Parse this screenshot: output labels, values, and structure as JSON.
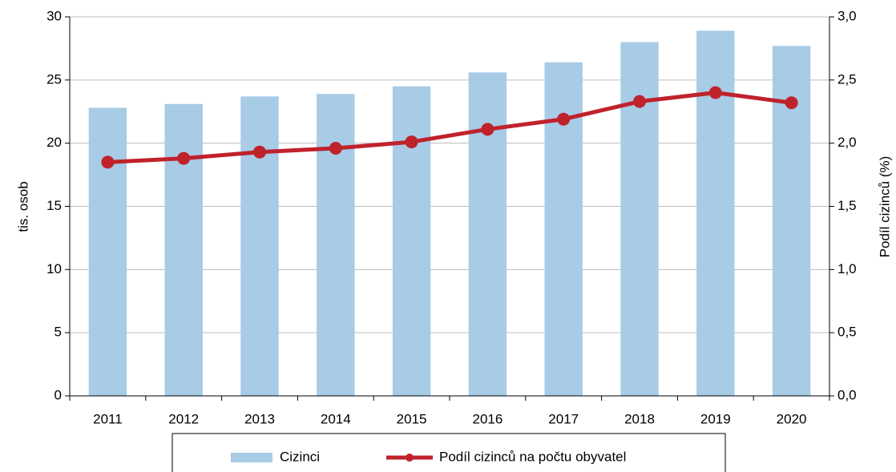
{
  "chart_data": {
    "type": "bar_line",
    "categories": [
      "2011",
      "2012",
      "2013",
      "2014",
      "2015",
      "2016",
      "2017",
      "2018",
      "2019",
      "2020"
    ],
    "series": [
      {
        "name": "Cizinci",
        "color": "#a8cbe6",
        "type": "bar",
        "values": [
          22.8,
          23.1,
          23.7,
          23.9,
          24.5,
          25.6,
          26.4,
          28.0,
          28.9,
          27.7
        ]
      },
      {
        "name": "Podíl cizinců na počtu obyvatel",
        "color": "#c0222c",
        "type": "line",
        "axis": "y2",
        "values": [
          1.85,
          1.88,
          1.93,
          1.96,
          2.01,
          2.11,
          2.19,
          2.33,
          2.4,
          2.32
        ]
      }
    ],
    "y_label": "tis. osob",
    "y2_label": "Podíl cizinců  (%)",
    "ylim": [
      0,
      30
    ],
    "yticks": [
      0,
      5,
      10,
      15,
      20,
      25,
      30
    ],
    "y2lim": [
      0,
      3
    ],
    "y2ticks": [
      {
        "value": 0,
        "label": "0,0"
      },
      {
        "value": 0.5,
        "label": "0,5"
      },
      {
        "value": 1,
        "label": "1,0"
      },
      {
        "value": 1.5,
        "label": "1,5"
      },
      {
        "value": 2,
        "label": "2,0"
      },
      {
        "value": 2.5,
        "label": "2,5"
      },
      {
        "value": 3,
        "label": "3,0"
      }
    ],
    "grid": true,
    "legend": "bottom"
  }
}
